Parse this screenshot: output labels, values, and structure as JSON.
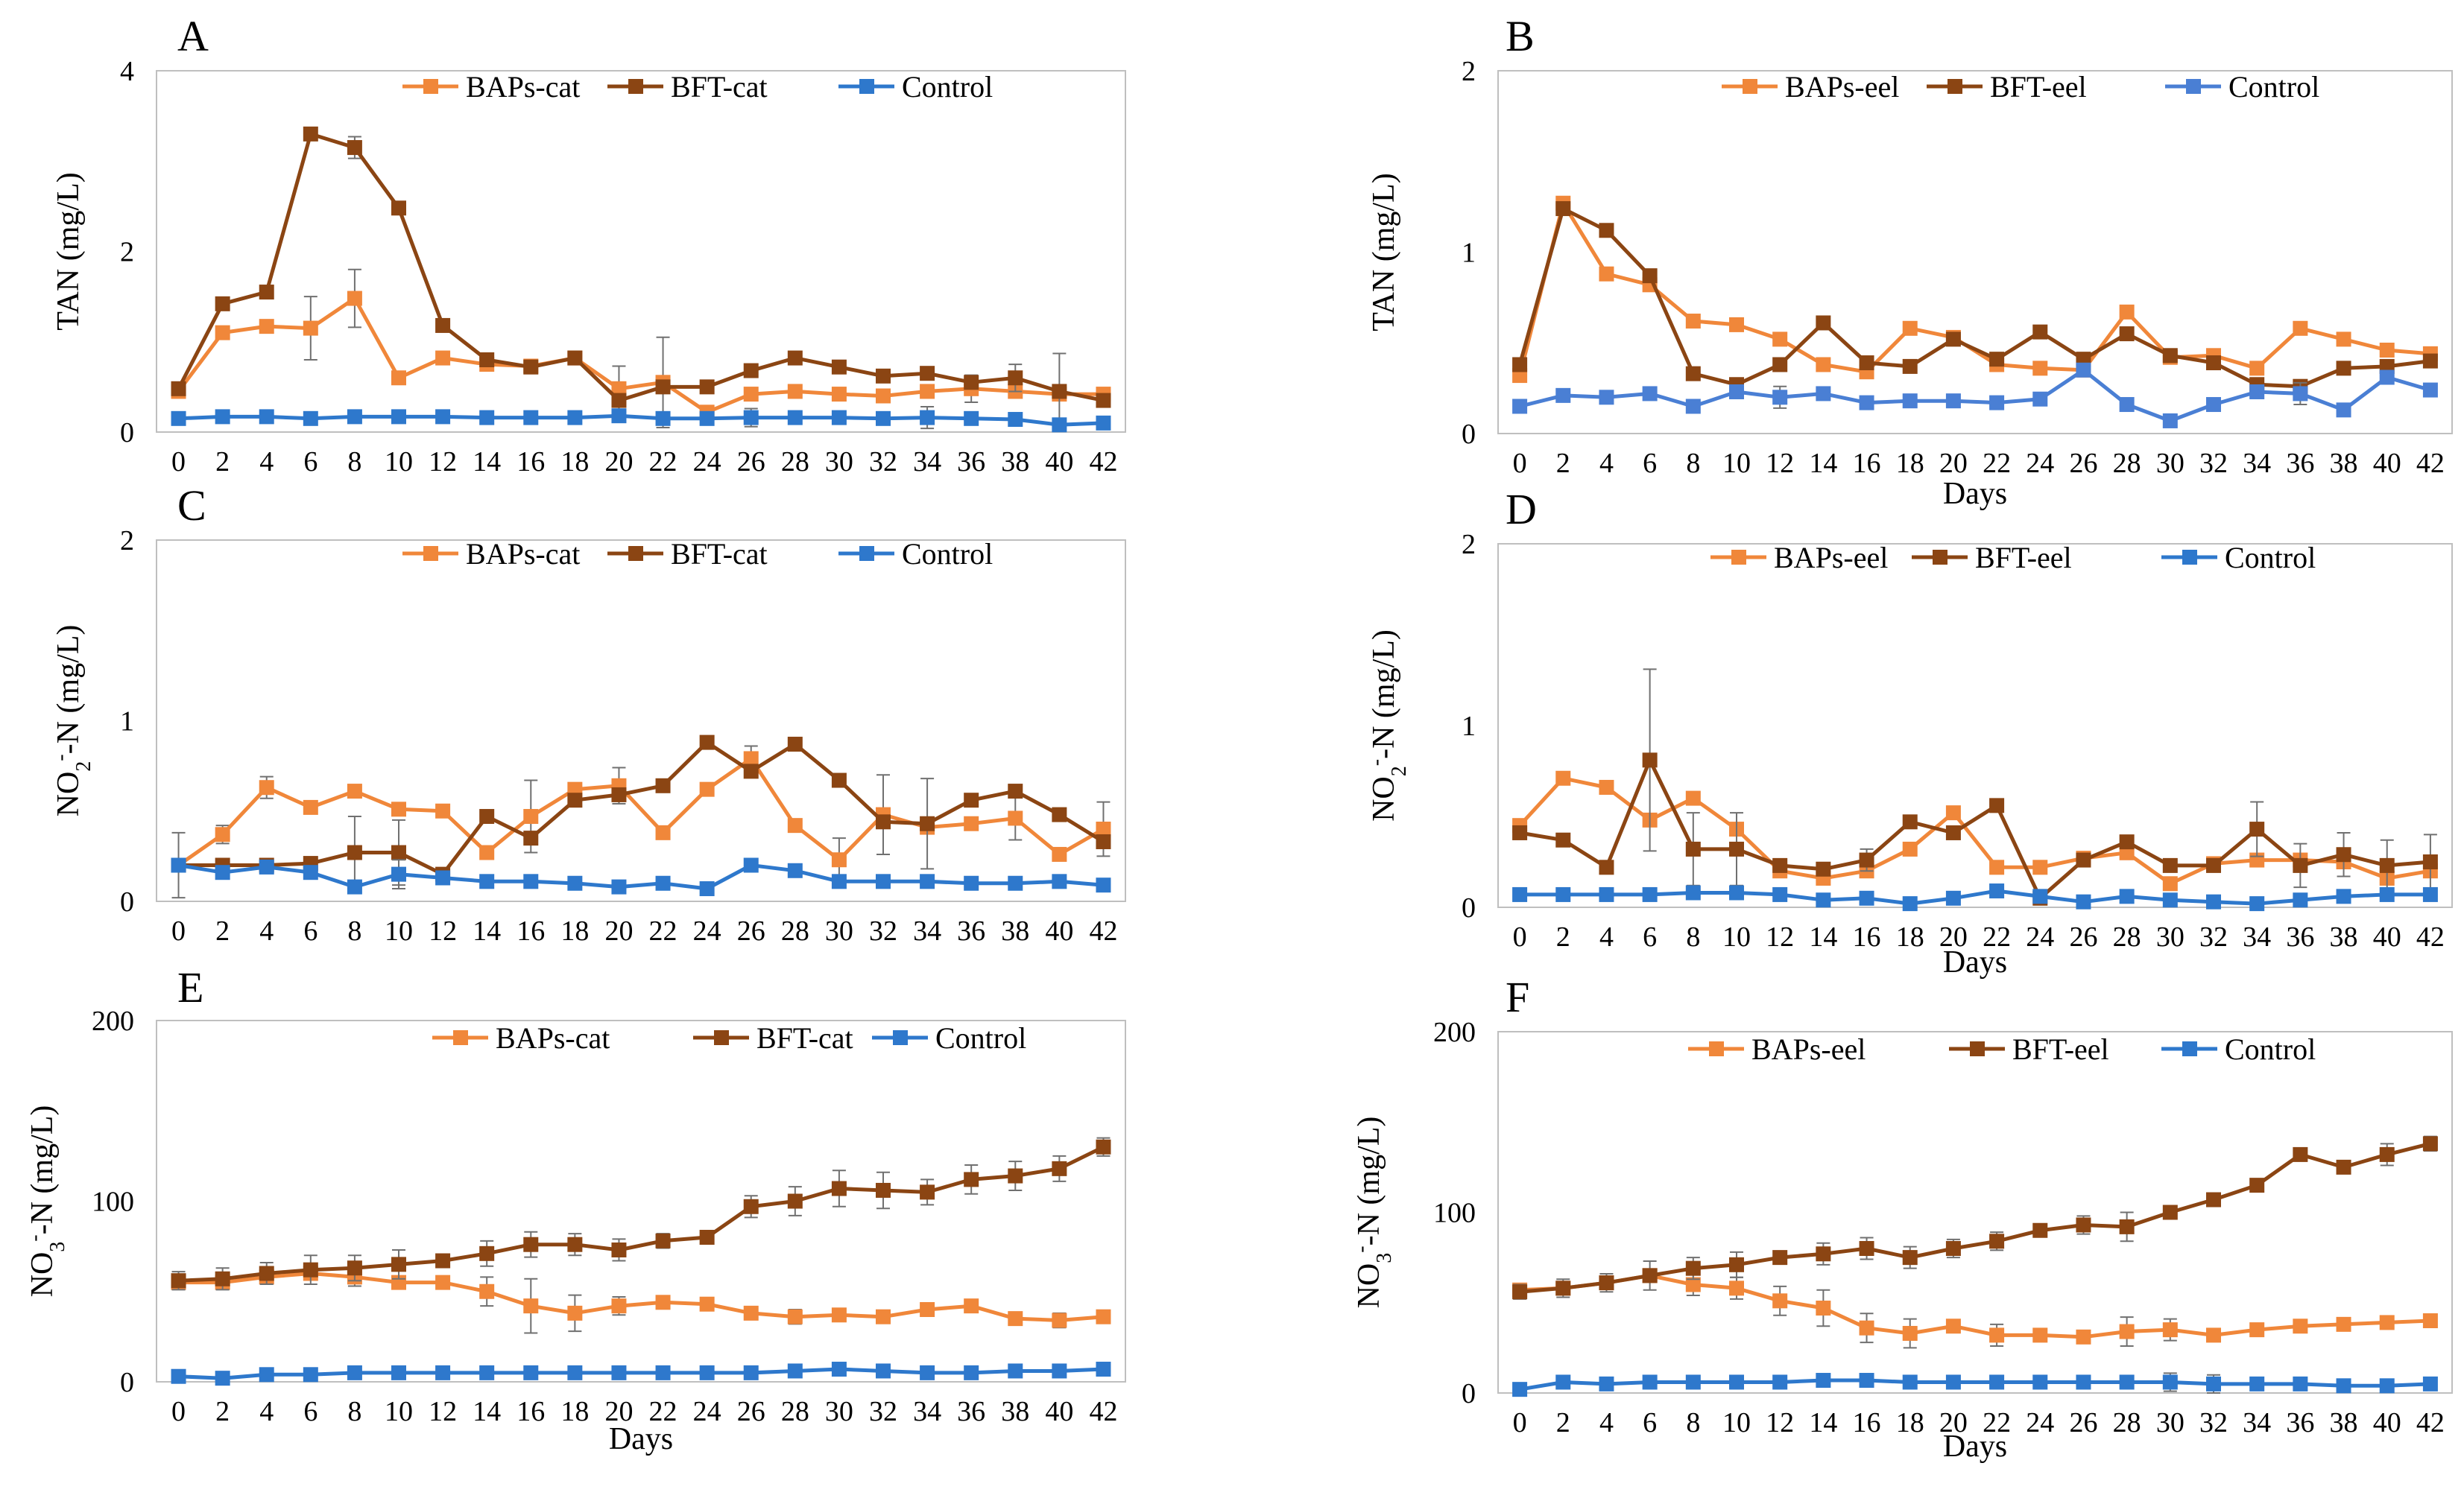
{
  "figure": {
    "background": "#ffffff"
  },
  "chart_data": [
    {
      "id": "A",
      "type": "line",
      "letter": "A",
      "xlabel": "",
      "ylabel": "TAN (mg/L)",
      "ylabel_html": "TAN (mg/L)",
      "ylim": [
        0,
        4
      ],
      "yticks": [
        "0",
        "2",
        "4"
      ],
      "x": [
        0,
        2,
        4,
        6,
        8,
        10,
        12,
        14,
        16,
        18,
        20,
        22,
        24,
        26,
        28,
        30,
        32,
        34,
        36,
        38,
        40,
        42
      ],
      "series": [
        {
          "name": "BAPs-cat",
          "color": "#F0873A",
          "values": [
            0.45,
            1.1,
            1.17,
            1.15,
            1.48,
            0.6,
            0.82,
            0.75,
            0.73,
            0.82,
            0.48,
            0.55,
            0.22,
            0.42,
            0.45,
            0.42,
            0.4,
            0.45,
            0.48,
            0.45,
            0.42,
            0.42
          ],
          "errors": [
            0,
            0,
            0,
            0.35,
            0.32,
            0,
            0,
            0,
            0,
            0,
            0.25,
            0.5,
            0,
            0,
            0,
            0,
            0,
            0,
            0.15,
            0,
            0,
            0
          ]
        },
        {
          "name": "BFT-cat",
          "color": "#8B4513",
          "values": [
            0.48,
            1.42,
            1.55,
            3.3,
            3.15,
            2.48,
            1.18,
            0.8,
            0.72,
            0.82,
            0.35,
            0.5,
            0.5,
            0.68,
            0.82,
            0.72,
            0.62,
            0.65,
            0.55,
            0.6,
            0.45,
            0.35
          ],
          "errors": [
            0,
            0,
            0,
            0,
            0.12,
            0,
            0,
            0,
            0,
            0,
            0,
            0,
            0,
            0,
            0,
            0,
            0,
            0,
            0,
            0.15,
            0.42,
            0
          ]
        },
        {
          "name": "Control",
          "color": "#2E78CC",
          "values": [
            0.15,
            0.17,
            0.17,
            0.15,
            0.17,
            0.17,
            0.17,
            0.16,
            0.16,
            0.16,
            0.18,
            0.15,
            0.15,
            0.16,
            0.16,
            0.16,
            0.15,
            0.16,
            0.15,
            0.14,
            0.08,
            0.1
          ],
          "errors": [
            0,
            0,
            0,
            0,
            0,
            0,
            0,
            0,
            0,
            0,
            0,
            0,
            0,
            0.1,
            0,
            0,
            0,
            0.12,
            0,
            0,
            0,
            0
          ]
        }
      ]
    },
    {
      "id": "B",
      "type": "line",
      "letter": "B",
      "xlabel": "Days",
      "ylabel": "TAN (mg/L)",
      "ylabel_html": "TAN (mg/L)",
      "ylim": [
        0,
        2
      ],
      "yticks": [
        "0",
        "1",
        "2"
      ],
      "x": [
        0,
        2,
        4,
        6,
        8,
        10,
        12,
        14,
        16,
        18,
        20,
        22,
        24,
        26,
        28,
        30,
        32,
        34,
        36,
        38,
        40,
        42
      ],
      "series": [
        {
          "name": "BAPs-eel",
          "color": "#F0873A",
          "values": [
            0.32,
            1.27,
            0.88,
            0.82,
            0.62,
            0.6,
            0.52,
            0.38,
            0.34,
            0.58,
            0.53,
            0.38,
            0.36,
            0.35,
            0.67,
            0.42,
            0.43,
            0.36,
            0.58,
            0.52,
            0.46,
            0.44
          ],
          "errors": [
            0,
            0,
            0,
            0,
            0,
            0,
            0,
            0,
            0,
            0,
            0,
            0,
            0,
            0,
            0,
            0,
            0,
            0,
            0,
            0,
            0,
            0
          ]
        },
        {
          "name": "BFT-eel",
          "color": "#8B4513",
          "values": [
            0.38,
            1.24,
            1.12,
            0.87,
            0.33,
            0.27,
            0.38,
            0.61,
            0.39,
            0.37,
            0.52,
            0.41,
            0.56,
            0.41,
            0.55,
            0.43,
            0.39,
            0.27,
            0.26,
            0.36,
            0.37,
            0.4
          ],
          "errors": [
            0,
            0,
            0,
            0,
            0,
            0,
            0,
            0,
            0,
            0,
            0,
            0,
            0,
            0,
            0,
            0,
            0,
            0,
            0,
            0,
            0,
            0
          ]
        },
        {
          "name": "Control",
          "color": "#4A7FD4",
          "values": [
            0.15,
            0.21,
            0.2,
            0.22,
            0.15,
            0.23,
            0.2,
            0.22,
            0.17,
            0.18,
            0.18,
            0.17,
            0.19,
            0.35,
            0.16,
            0.07,
            0.16,
            0.23,
            0.22,
            0.13,
            0.31,
            0.24
          ],
          "errors": [
            0,
            0,
            0,
            0,
            0,
            0,
            0.06,
            0,
            0,
            0,
            0,
            0,
            0,
            0,
            0,
            0,
            0,
            0,
            0.06,
            0,
            0,
            0
          ]
        }
      ]
    },
    {
      "id": "C",
      "type": "line",
      "letter": "C",
      "xlabel": "",
      "ylabel": "NO2--N (mg/L)",
      "ylabel_html": "NO<tspan baseline-shift=\"sub\" font-size=\"28\">2</tspan><tspan baseline-shift=\"super\" font-size=\"28\">-</tspan>-N (mg/L)",
      "ylim": [
        0,
        2
      ],
      "yticks": [
        "0",
        "1",
        "2"
      ],
      "x": [
        0,
        2,
        4,
        6,
        8,
        10,
        12,
        14,
        16,
        18,
        20,
        22,
        24,
        26,
        28,
        30,
        32,
        34,
        36,
        38,
        40,
        42
      ],
      "series": [
        {
          "name": "BAPs-cat",
          "color": "#F0873A",
          "values": [
            0.2,
            0.37,
            0.63,
            0.52,
            0.61,
            0.51,
            0.5,
            0.27,
            0.47,
            0.62,
            0.64,
            0.38,
            0.62,
            0.79,
            0.42,
            0.23,
            0.48,
            0.41,
            0.43,
            0.46,
            0.26,
            0.4
          ],
          "errors": [
            0.18,
            0.05,
            0.06,
            0,
            0,
            0,
            0,
            0,
            0.2,
            0,
            0.1,
            0,
            0,
            0.07,
            0,
            0.12,
            0.22,
            0,
            0,
            0.12,
            0,
            0.15
          ]
        },
        {
          "name": "BFT-cat",
          "color": "#8B4513",
          "values": [
            0.2,
            0.2,
            0.2,
            0.21,
            0.27,
            0.27,
            0.15,
            0.47,
            0.35,
            0.56,
            0.59,
            0.64,
            0.88,
            0.72,
            0.87,
            0.67,
            0.44,
            0.43,
            0.56,
            0.61,
            0.48,
            0.33
          ],
          "errors": [
            0,
            0,
            0,
            0,
            0.2,
            0.18,
            0,
            0,
            0,
            0,
            0,
            0,
            0,
            0,
            0,
            0,
            0,
            0.25,
            0,
            0,
            0,
            0
          ]
        },
        {
          "name": "Control",
          "color": "#2E78CC",
          "values": [
            0.2,
            0.16,
            0.19,
            0.16,
            0.08,
            0.15,
            0.13,
            0.11,
            0.11,
            0.1,
            0.08,
            0.1,
            0.07,
            0.2,
            0.17,
            0.11,
            0.11,
            0.11,
            0.1,
            0.1,
            0.11,
            0.09
          ],
          "errors": [
            0,
            0,
            0,
            0,
            0,
            0.08,
            0,
            0,
            0,
            0,
            0,
            0,
            0,
            0,
            0,
            0,
            0,
            0,
            0,
            0,
            0,
            0
          ]
        }
      ]
    },
    {
      "id": "D",
      "type": "line",
      "letter": "D",
      "xlabel": "Days",
      "ylabel": "NO2--N (mg/L)",
      "ylabel_html": "NO<tspan baseline-shift=\"sub\" font-size=\"28\">2</tspan><tspan baseline-shift=\"super\" font-size=\"28\">-</tspan>-N (mg/L)",
      "ylim": [
        0,
        2
      ],
      "yticks": [
        "0",
        "1",
        "2"
      ],
      "x": [
        0,
        2,
        4,
        6,
        8,
        10,
        12,
        14,
        16,
        18,
        20,
        22,
        24,
        26,
        28,
        30,
        32,
        34,
        36,
        38,
        40,
        42
      ],
      "series": [
        {
          "name": "BAPs-eel",
          "color": "#F0873A",
          "values": [
            0.45,
            0.71,
            0.66,
            0.48,
            0.6,
            0.43,
            0.2,
            0.16,
            0.2,
            0.32,
            0.52,
            0.22,
            0.22,
            0.27,
            0.3,
            0.13,
            0.24,
            0.26,
            0.26,
            0.25,
            0.16,
            0.2
          ],
          "errors": [
            0,
            0,
            0,
            0,
            0,
            0,
            0,
            0,
            0,
            0,
            0,
            0,
            0,
            0,
            0,
            0,
            0,
            0,
            0,
            0,
            0,
            0
          ]
        },
        {
          "name": "BFT-eel",
          "color": "#8B4513",
          "values": [
            0.41,
            0.37,
            0.22,
            0.81,
            0.32,
            0.32,
            0.23,
            0.21,
            0.26,
            0.47,
            0.41,
            0.56,
            0.05,
            0.26,
            0.36,
            0.23,
            0.23,
            0.43,
            0.23,
            0.29,
            0.23,
            0.25
          ],
          "errors": [
            0,
            0,
            0,
            0.5,
            0.2,
            0.2,
            0,
            0,
            0.06,
            0,
            0,
            0,
            0,
            0,
            0,
            0,
            0,
            0.15,
            0.12,
            0.12,
            0.14,
            0.15
          ]
        },
        {
          "name": "Control",
          "color": "#2E78CC",
          "values": [
            0.07,
            0.07,
            0.07,
            0.07,
            0.08,
            0.08,
            0.07,
            0.04,
            0.05,
            0.02,
            0.05,
            0.09,
            0.06,
            0.03,
            0.06,
            0.04,
            0.03,
            0.02,
            0.04,
            0.06,
            0.07,
            0.07
          ],
          "errors": [
            0,
            0,
            0,
            0,
            0,
            0,
            0,
            0,
            0,
            0,
            0,
            0,
            0,
            0,
            0,
            0,
            0,
            0,
            0,
            0,
            0,
            0
          ]
        }
      ]
    },
    {
      "id": "E",
      "type": "line",
      "letter": "E",
      "xlabel": "Days",
      "ylabel": "NO3--N (mg/L)",
      "ylabel_html": "NO<tspan baseline-shift=\"sub\" font-size=\"28\">3</tspan><tspan baseline-shift=\"super\" font-size=\"28\">-</tspan>-N (mg/L)",
      "ylim": [
        0,
        200
      ],
      "yticks": [
        "0",
        "100",
        "200"
      ],
      "x": [
        0,
        2,
        4,
        6,
        8,
        10,
        12,
        14,
        16,
        18,
        20,
        22,
        24,
        26,
        28,
        30,
        32,
        34,
        36,
        38,
        40,
        42
      ],
      "series": [
        {
          "name": "BAPs-cat",
          "color": "#F0873A",
          "values": [
            55,
            55,
            58,
            60,
            58,
            55,
            55,
            50,
            42,
            38,
            42,
            44,
            43,
            38,
            36,
            37,
            36,
            40,
            42,
            35,
            34,
            36
          ],
          "errors": [
            0,
            0,
            0,
            0,
            5,
            0,
            0,
            8,
            15,
            10,
            5,
            0,
            0,
            0,
            4,
            0,
            0,
            0,
            0,
            0,
            4,
            0
          ]
        },
        {
          "name": "BFT-cat",
          "color": "#8B4513",
          "values": [
            56,
            57,
            60,
            62,
            63,
            65,
            67,
            71,
            76,
            76,
            73,
            78,
            80,
            97,
            100,
            107,
            106,
            105,
            112,
            114,
            118,
            130
          ],
          "errors": [
            5,
            6,
            6,
            8,
            7,
            8,
            0,
            7,
            7,
            6,
            6,
            4,
            0,
            6,
            8,
            10,
            10,
            7,
            8,
            8,
            7,
            5
          ]
        },
        {
          "name": "Control",
          "color": "#2E78CC",
          "values": [
            3,
            2,
            4,
            4,
            5,
            5,
            5,
            5,
            5,
            5,
            5,
            5,
            5,
            5,
            6,
            7,
            6,
            5,
            5,
            6,
            6,
            7
          ],
          "errors": [
            0,
            0,
            0,
            0,
            0,
            0,
            0,
            0,
            0,
            0,
            0,
            0,
            0,
            0,
            0,
            0,
            0,
            0,
            0,
            0,
            0,
            0
          ]
        }
      ]
    },
    {
      "id": "F",
      "type": "line",
      "letter": "F",
      "xlabel": "Days",
      "ylabel": "NO3--N (mg/L)",
      "ylabel_html": "NO<tspan baseline-shift=\"sub\" font-size=\"28\">3</tspan><tspan baseline-shift=\"super\" font-size=\"28\">-</tspan>-N (mg/L)",
      "ylim": [
        0,
        200
      ],
      "yticks": [
        "0",
        "100",
        "200"
      ],
      "x": [
        0,
        2,
        4,
        6,
        8,
        10,
        12,
        14,
        16,
        18,
        20,
        22,
        24,
        26,
        28,
        30,
        32,
        34,
        36,
        38,
        40,
        42
      ],
      "series": [
        {
          "name": "BAPs-eel",
          "color": "#F0873A",
          "values": [
            57,
            58,
            61,
            65,
            60,
            58,
            51,
            47,
            36,
            33,
            37,
            32,
            32,
            31,
            34,
            35,
            32,
            35,
            37,
            38,
            39,
            40
          ],
          "errors": [
            0,
            0,
            0,
            0,
            6,
            6,
            8,
            10,
            8,
            8,
            0,
            6,
            0,
            0,
            8,
            6,
            0,
            0,
            0,
            0,
            0,
            0
          ]
        },
        {
          "name": "BFT-eel",
          "color": "#8B4513",
          "values": [
            56,
            58,
            61,
            65,
            69,
            71,
            75,
            77,
            80,
            75,
            80,
            84,
            90,
            93,
            92,
            100,
            107,
            115,
            132,
            125,
            132,
            138
          ],
          "errors": [
            4,
            5,
            5,
            8,
            6,
            7,
            0,
            6,
            6,
            6,
            5,
            5,
            0,
            5,
            8,
            0,
            0,
            0,
            0,
            0,
            6,
            4
          ]
        },
        {
          "name": "Control",
          "color": "#2E78CC",
          "values": [
            2,
            6,
            5,
            6,
            6,
            6,
            6,
            7,
            7,
            6,
            6,
            6,
            6,
            6,
            6,
            6,
            5,
            5,
            5,
            4,
            4,
            5
          ],
          "errors": [
            0,
            0,
            0,
            0,
            0,
            0,
            0,
            0,
            0,
            0,
            0,
            0,
            0,
            0,
            0,
            5,
            5,
            0,
            0,
            0,
            0,
            0
          ]
        }
      ]
    }
  ]
}
